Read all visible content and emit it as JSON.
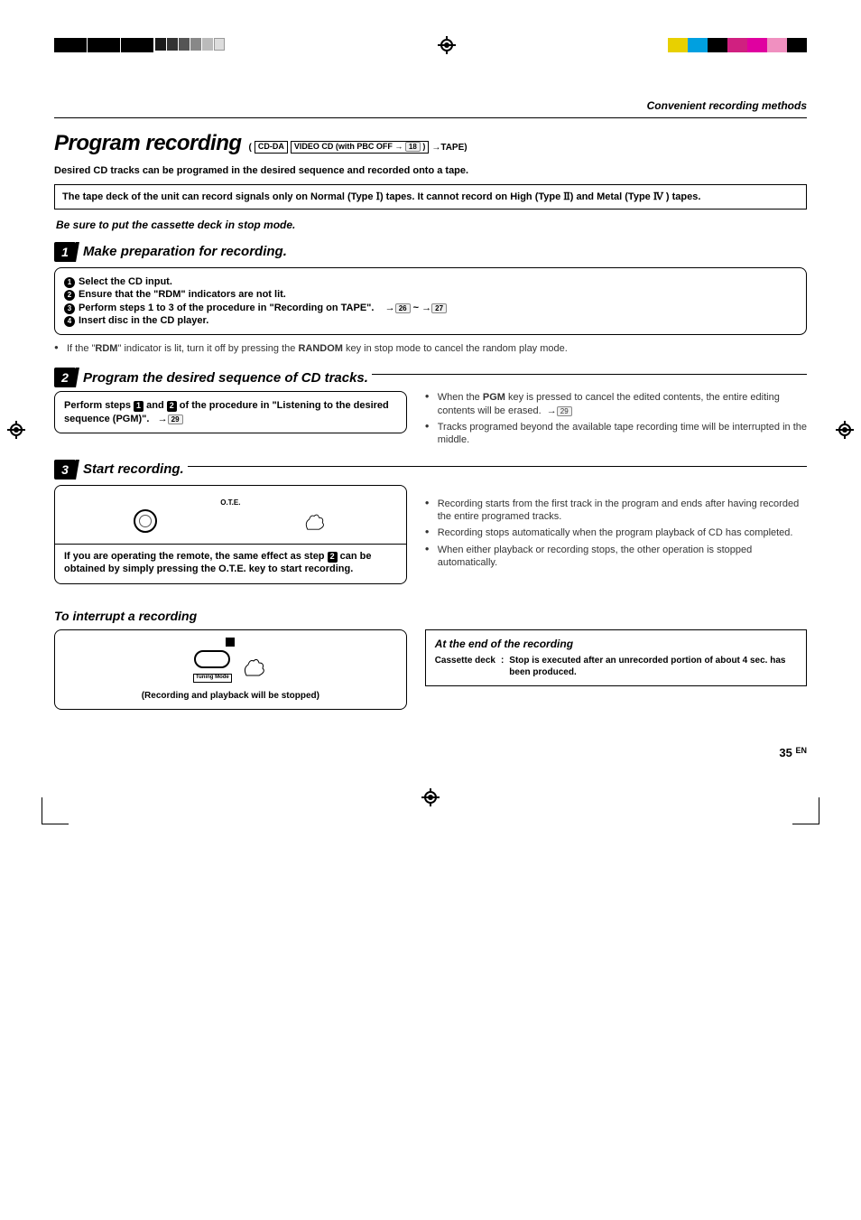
{
  "colorbar_right": [
    "#e8d000",
    "#00a0e0",
    "#000000",
    "#d02080",
    "#e000a0",
    "#f090c0",
    "#000000"
  ],
  "header_section": "Convenient recording methods",
  "title": "Program recording",
  "title_suffix_open": "(",
  "title_box1": "CD-DA",
  "title_box2_prefix": "VIDEO CD (with PBC OFF",
  "title_box2_pg": "18",
  "title_box2_suffix": ")",
  "title_arrow": "→TAPE)",
  "desc": "Desired CD tracks can be programed in the desired sequence and recorded onto a tape.",
  "tape_note_a": "The tape deck of the unit can record signals only on Normal (Type ",
  "tape_note_r1": "Ⅰ",
  "tape_note_b": ") tapes. It cannot record on High (Type ",
  "tape_note_r2": "Ⅱ",
  "tape_note_c": ") and Metal (Type ",
  "tape_note_r3": "Ⅳ",
  "tape_note_d": " ) tapes.",
  "notice": "Be sure to put the cassette deck in stop mode.",
  "step1": {
    "num": "1",
    "title": "Make preparation for recording.",
    "l1": "Select the CD input.",
    "l2": "Ensure that the \"RDM\" indicators are not lit.",
    "l3a": "Perform steps 1 to 3 of the procedure in \"Recording on TAPE\".",
    "l3_pg1": "26",
    "l3_tilde": "~",
    "l3_pg2": "27",
    "l4": "Insert disc in the CD player.",
    "note_a": "If the \"",
    "note_b": "RDM",
    "note_c": "\" indicator is lit, turn it off by pressing the ",
    "note_d": "RANDOM",
    "note_e": " key in stop mode to cancel the random play mode."
  },
  "step2": {
    "num": "2",
    "title": "Program the desired sequence of CD tracks.",
    "body_a": "Perform steps ",
    "body_b1": "1",
    "body_mid": " and ",
    "body_b2": "2",
    "body_c": " of the procedure in \"Listening to the desired sequence (PGM)\".",
    "body_pg": "29",
    "r1a": "When the ",
    "r1b": "PGM",
    "r1c": " key is pressed to cancel the edited contents, the entire editing contents will be erased.",
    "r1_pg": "29",
    "r2": "Tracks programed beyond the available tape recording time will be interrupted in the middle."
  },
  "step3": {
    "num": "3",
    "title": "Start recording.",
    "ote": "O.T.E.",
    "body_a": "If you are operating the remote, the same effect as step ",
    "body_b": "2",
    "body_c": " can be obtained by simply pressing the O.T.E. key to start recording.",
    "r1": "Recording starts from the first track in the program and ends after having recorded the entire programed tracks.",
    "r2": "Recording stops automatically when the program playback of CD has completed.",
    "r3": "When either playback or recording stops, the other operation is stopped automatically."
  },
  "interrupt": {
    "title": "To interrupt a recording",
    "tuning": "Tuning Mode",
    "caption": "(Recording and playback will be stopped)"
  },
  "end": {
    "title": "At the end of the recording",
    "k": "Cassette deck",
    "sep": ":",
    "v": "Stop is executed after an unrecorded portion of about 4 sec. has been produced."
  },
  "page": {
    "num": "35",
    "lang": "EN"
  }
}
